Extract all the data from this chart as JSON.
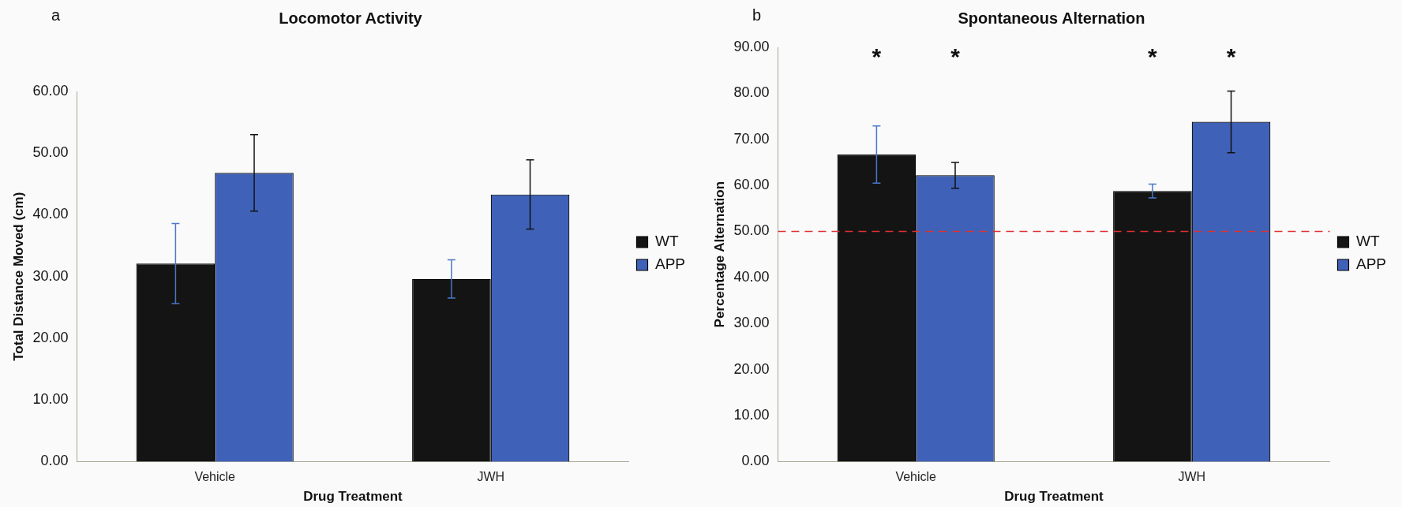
{
  "chart_data": [
    {
      "type": "bar",
      "title": "Locomotor Activity",
      "subtitle": "a",
      "xlabel": "Drug Treatment",
      "ylabel": "Total Distance Moved (cm)",
      "categories": [
        "Vehicle",
        "JWH"
      ],
      "series": [
        {
          "name": "WT",
          "color": "#141414",
          "values": [
            32.1,
            29.6
          ],
          "errors": [
            6.5,
            3.1
          ]
        },
        {
          "name": "APP",
          "color": "#3f62b8",
          "values": [
            46.8,
            43.3
          ],
          "errors": [
            6.2,
            5.6
          ]
        }
      ],
      "ylim": [
        0,
        60
      ],
      "yticks": [
        {
          "value": 0,
          "label": "0.00"
        },
        {
          "value": 10,
          "label": "10.00"
        },
        {
          "value": 20,
          "label": "20.00"
        },
        {
          "value": 30,
          "label": "30.00"
        },
        {
          "value": 40,
          "label": "40.00"
        },
        {
          "value": 50,
          "label": "50.00"
        },
        {
          "value": 60,
          "label": "60.00"
        }
      ],
      "grid": false,
      "legend": "right"
    },
    {
      "type": "bar",
      "title": "Spontaneous Alternation",
      "subtitle": "b",
      "xlabel": "Drug Treatment",
      "ylabel": "Percentage Alternation",
      "categories": [
        "Vehicle",
        "JWH"
      ],
      "series": [
        {
          "name": "WT",
          "color": "#141414",
          "values": [
            66.7,
            58.8
          ],
          "errors": [
            6.2,
            1.5
          ]
        },
        {
          "name": "APP",
          "color": "#3f62b8",
          "values": [
            62.2,
            73.8
          ],
          "errors": [
            2.8,
            6.7
          ]
        }
      ],
      "ylim": [
        0,
        90
      ],
      "yticks": [
        {
          "value": 0,
          "label": "0.00"
        },
        {
          "value": 10,
          "label": "10.00"
        },
        {
          "value": 20,
          "label": "20.00"
        },
        {
          "value": 30,
          "label": "30.00"
        },
        {
          "value": 40,
          "label": "40.00"
        },
        {
          "value": 50,
          "label": "50.00"
        },
        {
          "value": 60,
          "label": "60.00"
        },
        {
          "value": 70,
          "label": "70.00"
        },
        {
          "value": 80,
          "label": "80.00"
        },
        {
          "value": 90,
          "label": "90.00"
        }
      ],
      "ref_lines": [
        {
          "axis": "y",
          "value": 50,
          "color": "#e03030",
          "line_style": "dashed"
        }
      ],
      "annotations": [
        "*",
        "*",
        "*",
        "*"
      ],
      "grid": false,
      "legend": "right"
    }
  ]
}
